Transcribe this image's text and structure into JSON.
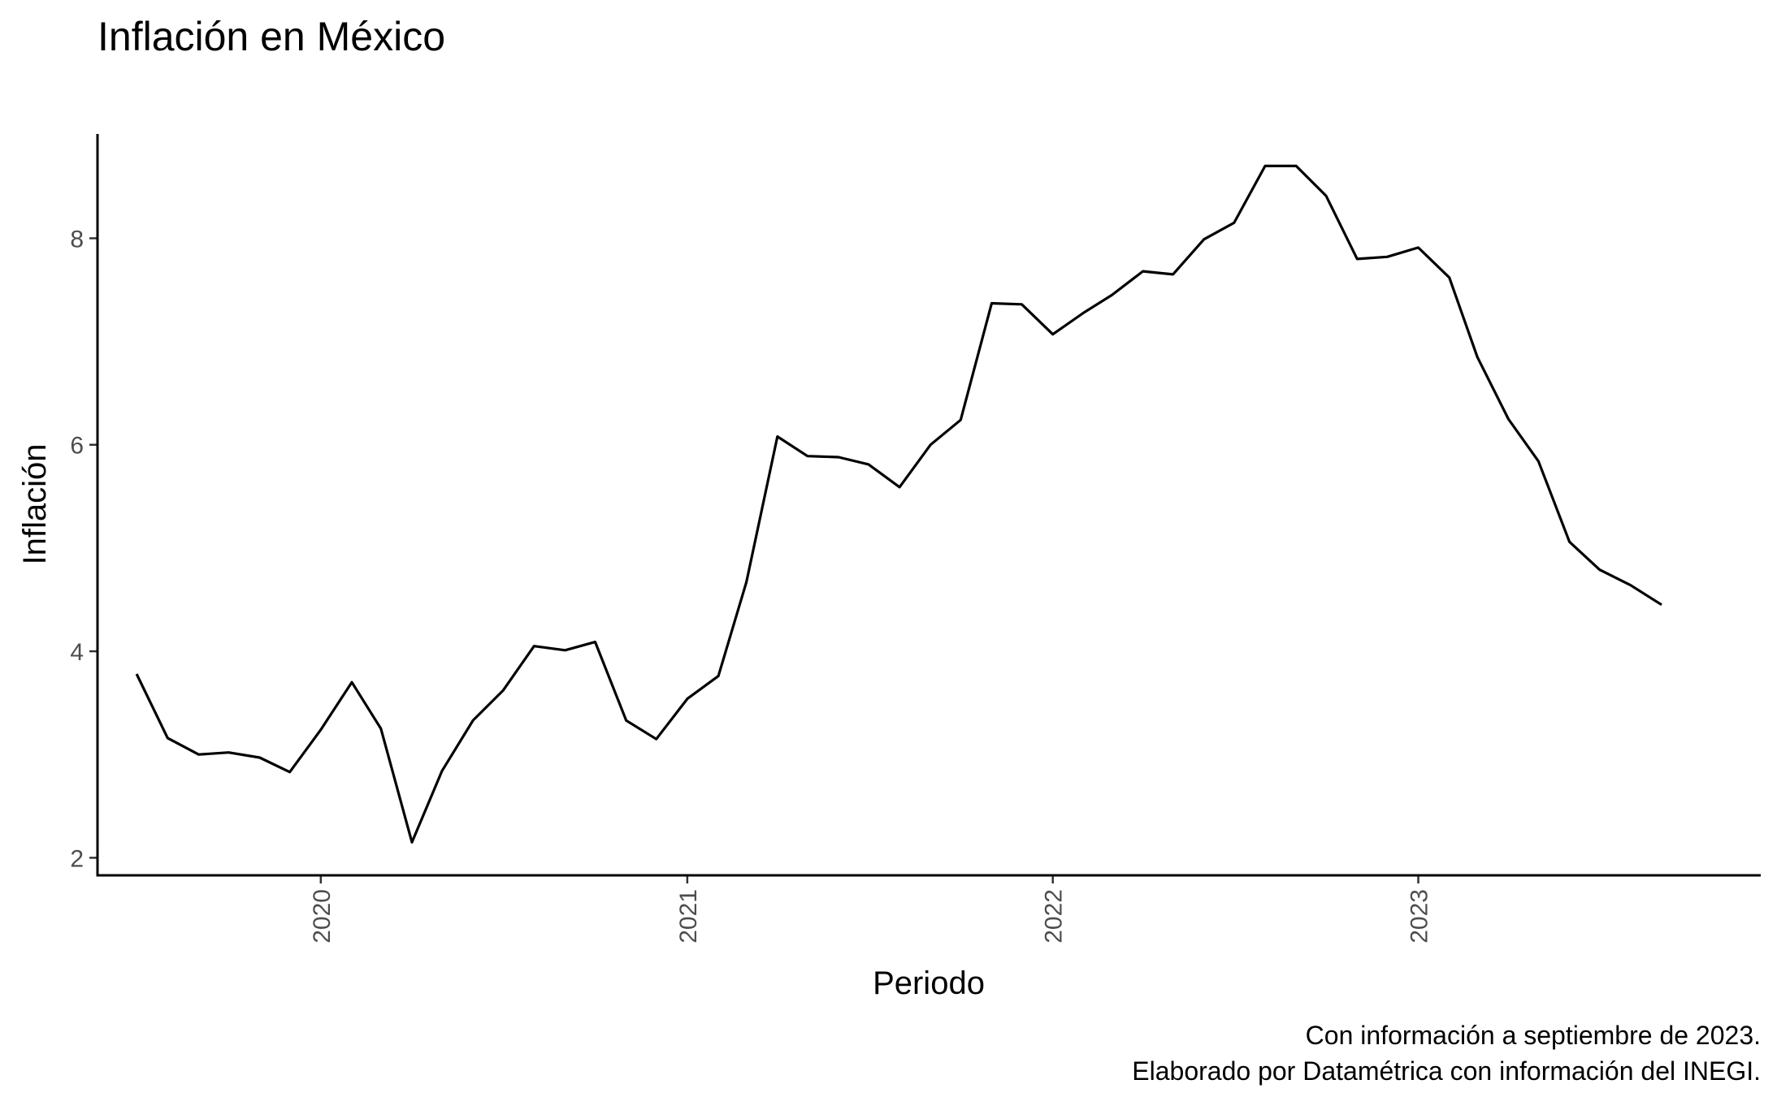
{
  "chart_data": {
    "type": "line",
    "title": "Inflación en México",
    "xlabel": "Periodo",
    "ylabel": "Inflación",
    "caption_lines": [
      "Con información a septiembre de 2023.",
      "Elaborado por Datamétrica con información del INEGI."
    ],
    "xlim": [
      "2019-05-23",
      "2023-12-09"
    ],
    "ylim": [
      1.83,
      9.01
    ],
    "x_ticks": [
      "2020",
      "2021",
      "2022",
      "2023"
    ],
    "y_ticks": [
      "2",
      "4",
      "6",
      "8"
    ],
    "grid": false,
    "legend": "none",
    "line_color": "#000000",
    "series": [
      {
        "x": [
          "2019-07",
          "2019-08",
          "2019-09",
          "2019-10",
          "2019-11",
          "2019-12",
          "2020-01",
          "2020-02",
          "2020-03",
          "2020-04",
          "2020-05",
          "2020-06",
          "2020-07",
          "2020-08",
          "2020-09",
          "2020-10",
          "2020-11",
          "2020-12",
          "2021-01",
          "2021-02",
          "2021-03",
          "2021-04",
          "2021-05",
          "2021-06",
          "2021-07",
          "2021-08",
          "2021-09",
          "2021-10",
          "2021-11",
          "2021-12",
          "2022-01",
          "2022-02",
          "2022-03",
          "2022-04",
          "2022-05",
          "2022-06",
          "2022-07",
          "2022-08",
          "2022-09",
          "2022-10",
          "2022-11",
          "2022-12",
          "2023-01",
          "2023-02",
          "2023-03",
          "2023-04",
          "2023-05",
          "2023-06",
          "2023-07",
          "2023-08",
          "2023-09"
        ],
        "values": [
          3.78,
          3.16,
          3.0,
          3.02,
          2.97,
          2.83,
          3.24,
          3.7,
          3.25,
          2.15,
          2.84,
          3.33,
          3.62,
          4.05,
          4.01,
          4.09,
          3.33,
          3.15,
          3.54,
          3.76,
          4.67,
          6.08,
          5.89,
          5.88,
          5.81,
          5.59,
          6.0,
          6.24,
          7.37,
          7.36,
          7.07,
          7.28,
          7.45,
          7.68,
          7.65,
          7.99,
          8.15,
          8.7,
          8.7,
          8.41,
          7.8,
          7.82,
          7.91,
          7.62,
          6.85,
          6.25,
          5.84,
          5.06,
          4.79,
          4.64,
          4.45
        ]
      }
    ]
  }
}
